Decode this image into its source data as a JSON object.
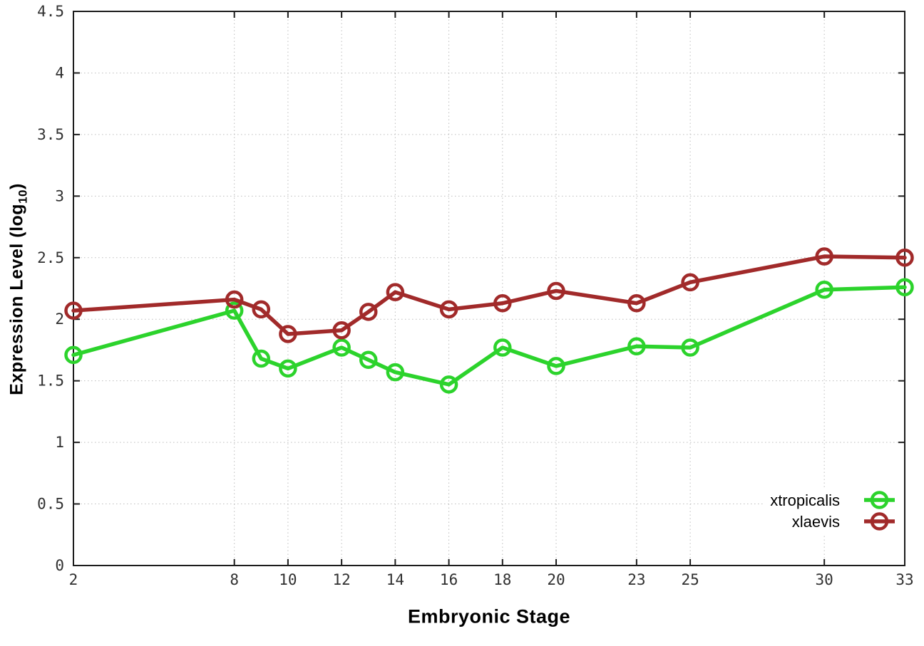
{
  "figure": {
    "background": "#ffffff",
    "axis_color": "#1c1c1c",
    "grid_color": "#bdbdbd",
    "tick_label_color": "#303030",
    "text_color": "#000000"
  },
  "labels": {
    "x_title": "Embryonic Stage",
    "y_title_prefix": "Expression Level (log",
    "y_title_sub": "10",
    "y_title_suffix": ")"
  },
  "chart_data": {
    "type": "line",
    "title": "",
    "xlabel": "Embryonic Stage",
    "ylabel": "Expression Level (log10)",
    "xlim": [
      2,
      33
    ],
    "ylim": [
      0,
      4.5
    ],
    "x_ticks": [
      2,
      8,
      10,
      12,
      14,
      16,
      18,
      20,
      23,
      25,
      30,
      33
    ],
    "y_ticks": [
      0,
      0.5,
      1,
      1.5,
      2,
      2.5,
      3,
      3.5,
      4,
      4.5
    ],
    "grid": true,
    "legend_position": "inside-bottom-right",
    "x": [
      2,
      8,
      9,
      10,
      12,
      13,
      14,
      16,
      18,
      20,
      23,
      25,
      30,
      33
    ],
    "series": [
      {
        "name": "xtropicalis",
        "color": "#2cd32c",
        "marker": "open-circle",
        "values": [
          1.71,
          2.07,
          1.68,
          1.6,
          1.77,
          1.67,
          1.57,
          1.47,
          1.77,
          1.62,
          1.78,
          1.77,
          2.24,
          2.26
        ]
      },
      {
        "name": "xlaevis",
        "color": "#a12a2a",
        "marker": "open-circle",
        "values": [
          2.07,
          2.16,
          2.08,
          1.88,
          1.91,
          2.06,
          2.22,
          2.08,
          2.13,
          2.23,
          2.13,
          2.3,
          2.51,
          2.5
        ]
      }
    ]
  }
}
